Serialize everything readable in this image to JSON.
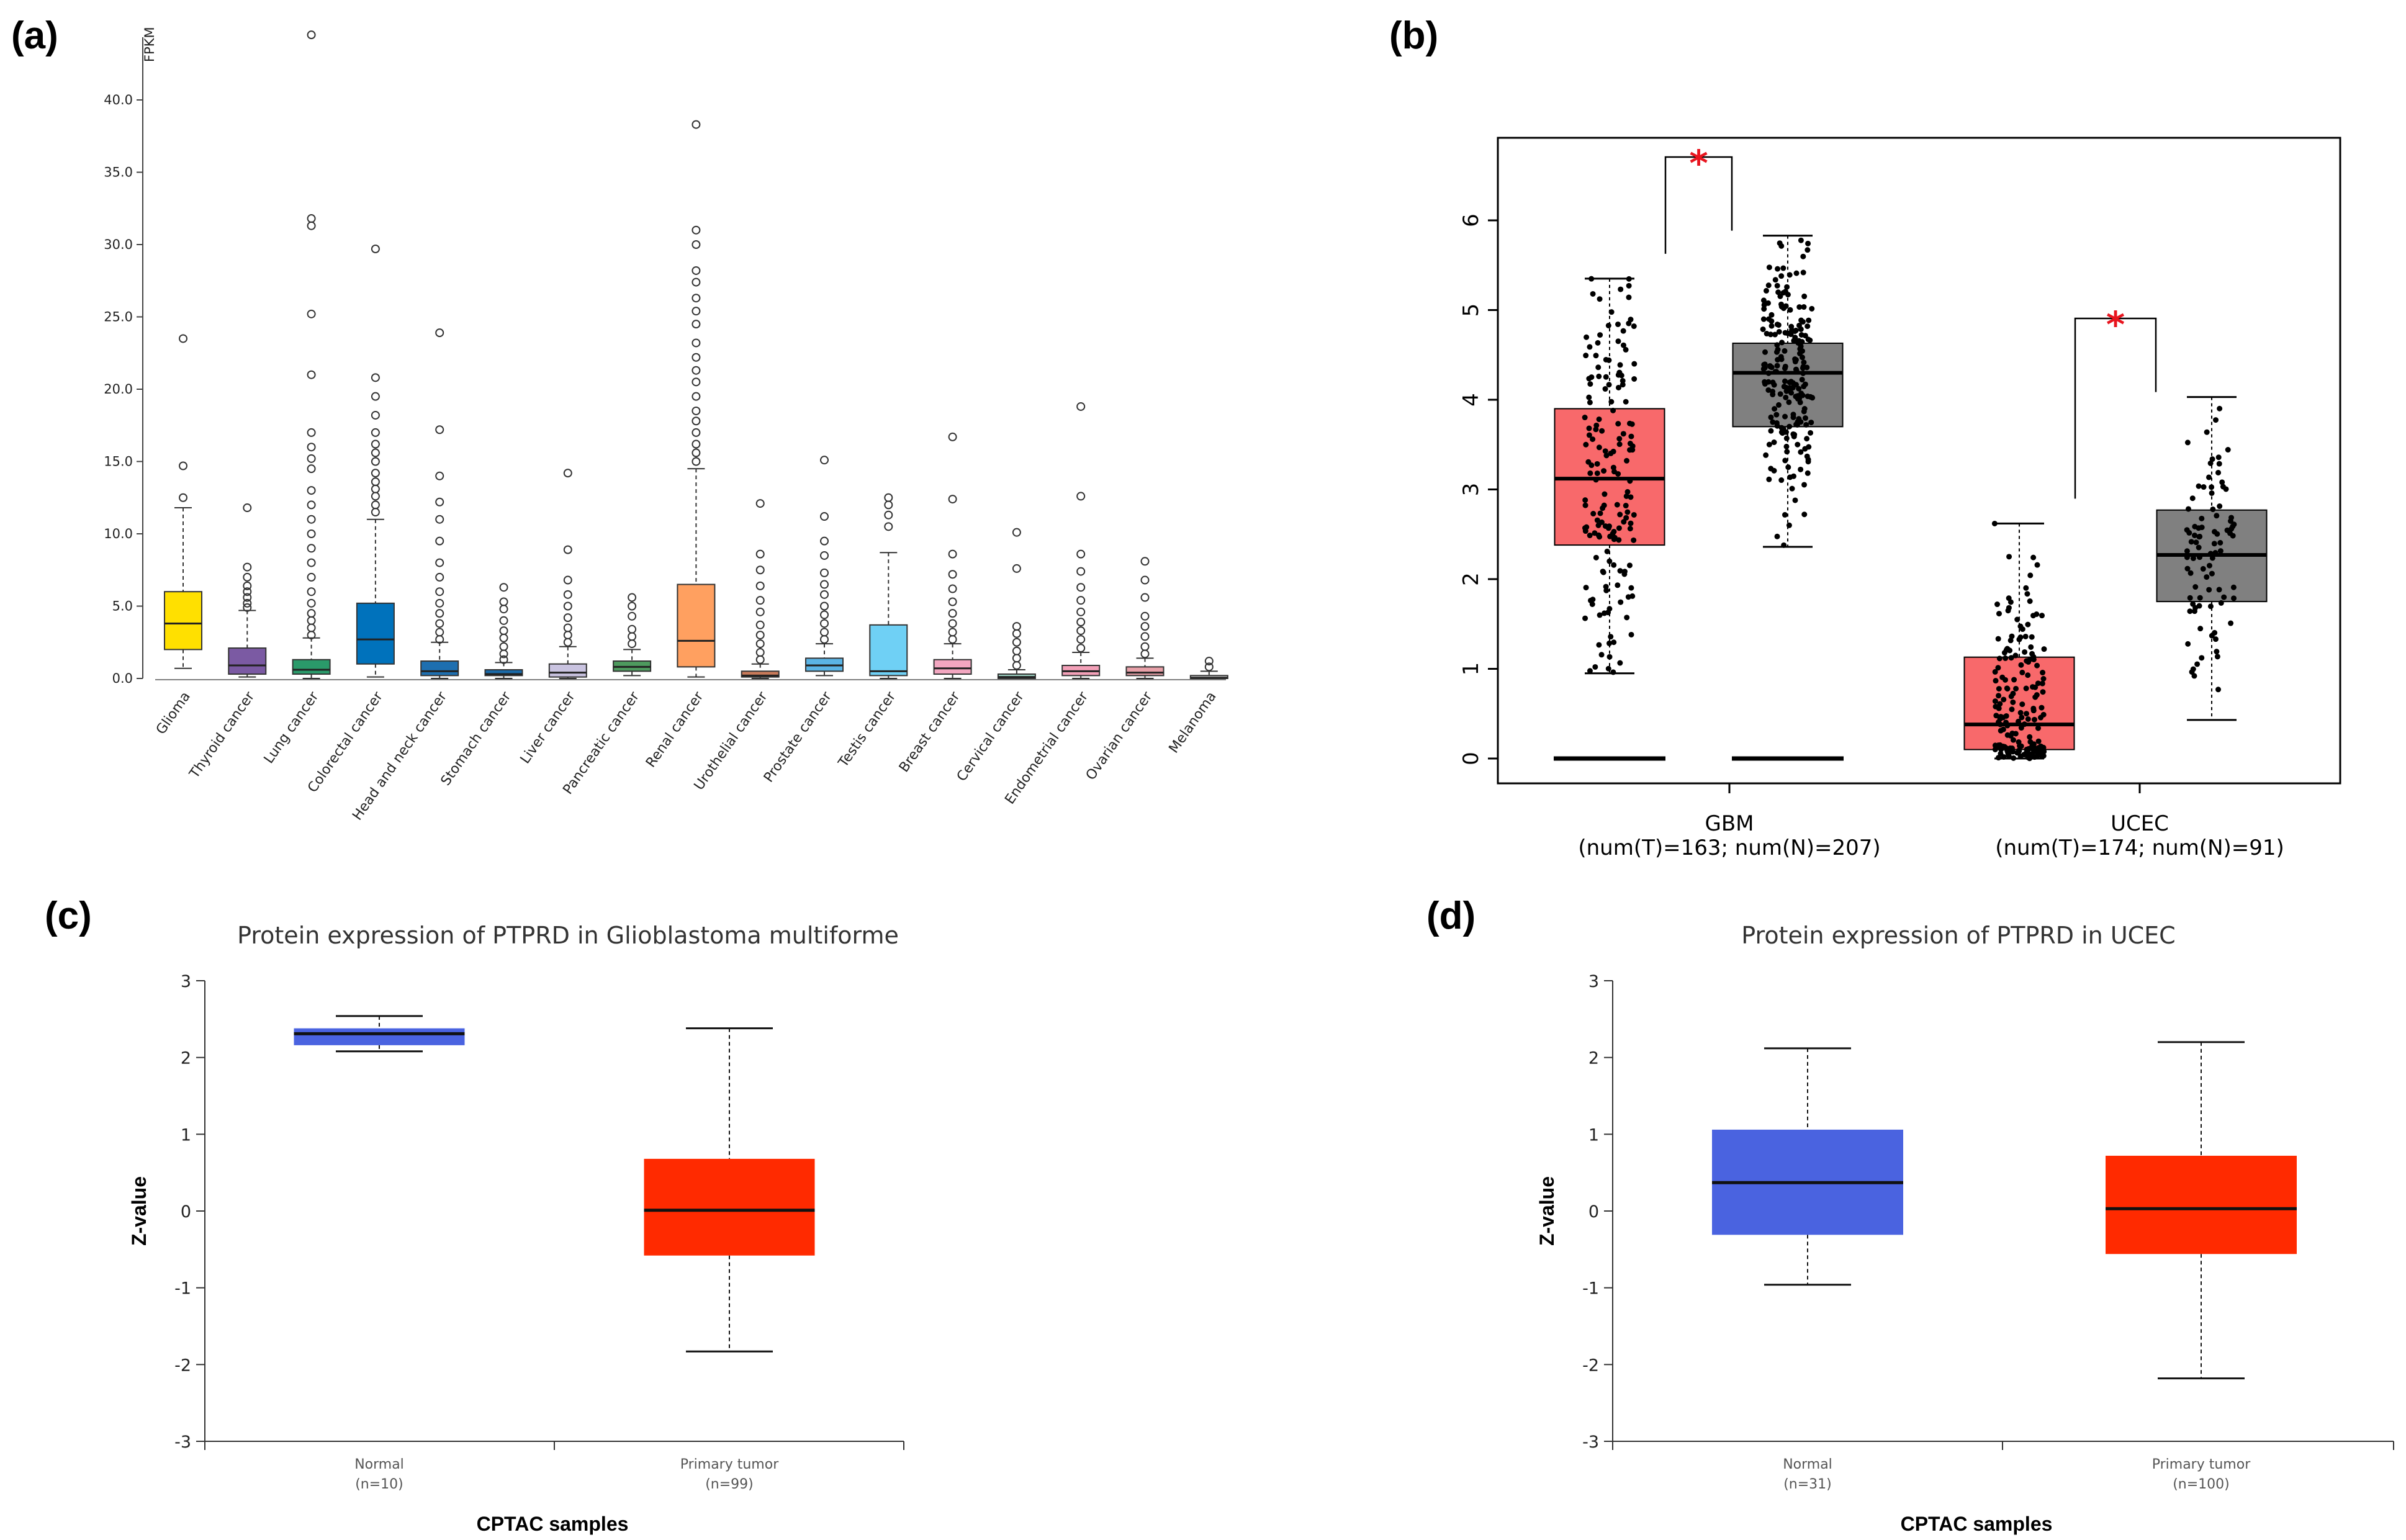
{
  "panels": {
    "a": "(a)",
    "b": "(b)",
    "c": "(c)",
    "d": "(d)"
  },
  "chart_data": [
    {
      "id": "a",
      "type": "box",
      "title": "",
      "ylabel": "FPKM",
      "ylim": [
        0,
        45
      ],
      "yticks": [
        "0.0",
        "5.0",
        "10.0",
        "15.0",
        "20.0",
        "25.0",
        "30.0",
        "35.0",
        "40.0"
      ],
      "categories": [
        "Glioma",
        "Thyroid cancer",
        "Lung cancer",
        "Colorectal cancer",
        "Head and neck cancer",
        "Stomach cancer",
        "Liver cancer",
        "Pancreatic cancer",
        "Renal cancer",
        "Urothelial cancer",
        "Prostate cancer",
        "Testis cancer",
        "Breast cancer",
        "Cervical cancer",
        "Endometrial cancer",
        "Ovarian cancer",
        "Melanoma"
      ],
      "colors": [
        "#ffe000",
        "#7b5aa3",
        "#2a9a6a",
        "#0072bc",
        "#1e6fb0",
        "#1a6aa8",
        "#c9c3e0",
        "#4e9a5e",
        "#ffa060",
        "#c97b5a",
        "#5bb4e5",
        "#6fd0f5",
        "#f2a6c0",
        "#9bd0c0",
        "#f3a0b8",
        "#e8a0a8",
        "#dddddd"
      ],
      "boxes": [
        {
          "low": 0.7,
          "q1": 2.0,
          "median": 3.8,
          "q3": 6.0,
          "high": 11.8,
          "outliers": [
            12.5,
            14.7,
            23.5
          ]
        },
        {
          "low": 0.1,
          "q1": 0.3,
          "median": 0.9,
          "q3": 2.1,
          "high": 4.7,
          "outliers": [
            4.9,
            5.2,
            5.6,
            6.0,
            6.4,
            7.0,
            7.7,
            11.8
          ]
        },
        {
          "low": 0.0,
          "q1": 0.3,
          "median": 0.6,
          "q3": 1.3,
          "high": 2.8,
          "outliers": [
            3.0,
            3.5,
            4.0,
            4.5,
            5.2,
            6.0,
            7.0,
            8.0,
            9.0,
            10.0,
            11.0,
            12.0,
            13.0,
            14.5,
            15.2,
            16.0,
            17.0,
            21.0,
            25.2,
            31.3,
            31.8,
            44.5
          ]
        },
        {
          "low": 0.1,
          "q1": 1.0,
          "median": 2.7,
          "q3": 5.2,
          "high": 11.0,
          "outliers": [
            11.5,
            12.0,
            12.6,
            13.1,
            13.6,
            14.2,
            15.0,
            15.6,
            16.2,
            17.0,
            18.2,
            19.5,
            20.8,
            29.7
          ]
        },
        {
          "low": 0.0,
          "q1": 0.2,
          "median": 0.5,
          "q3": 1.2,
          "high": 2.5,
          "outliers": [
            2.7,
            3.2,
            3.8,
            4.5,
            5.2,
            6.0,
            7.0,
            8.0,
            9.5,
            11.0,
            12.2,
            14.0,
            17.2,
            23.9
          ]
        },
        {
          "low": 0.0,
          "q1": 0.2,
          "median": 0.3,
          "q3": 0.6,
          "high": 1.1,
          "outliers": [
            1.3,
            1.7,
            2.2,
            2.8,
            3.3,
            4.0,
            4.8,
            5.3,
            6.3
          ]
        },
        {
          "low": 0.0,
          "q1": 0.1,
          "median": 0.4,
          "q3": 1.0,
          "high": 2.2,
          "outliers": [
            2.5,
            3.0,
            3.5,
            4.2,
            5.0,
            5.8,
            6.8,
            8.9,
            14.2
          ]
        },
        {
          "low": 0.2,
          "q1": 0.5,
          "median": 0.8,
          "q3": 1.2,
          "high": 2.0,
          "outliers": [
            2.4,
            2.9,
            3.4,
            4.3,
            5.0,
            5.6
          ]
        },
        {
          "low": 0.1,
          "q1": 0.8,
          "median": 2.6,
          "q3": 6.5,
          "high": 14.5,
          "outliers": [
            15.0,
            15.6,
            16.2,
            17.0,
            17.8,
            18.5,
            19.5,
            20.5,
            21.3,
            22.2,
            23.2,
            24.5,
            25.4,
            26.3,
            27.4,
            28.2,
            30.0,
            31.0,
            38.3
          ]
        },
        {
          "low": 0.0,
          "q1": 0.1,
          "median": 0.2,
          "q3": 0.5,
          "high": 1.0,
          "outliers": [
            1.3,
            1.8,
            2.4,
            3.0,
            3.7,
            4.6,
            5.4,
            6.4,
            7.5,
            8.6,
            12.1
          ]
        },
        {
          "low": 0.2,
          "q1": 0.5,
          "median": 0.9,
          "q3": 1.4,
          "high": 2.4,
          "outliers": [
            2.7,
            3.2,
            3.8,
            4.4,
            5.0,
            5.8,
            6.5,
            7.3,
            8.5,
            9.5,
            11.2,
            15.1
          ]
        },
        {
          "low": 0.0,
          "q1": 0.2,
          "median": 0.5,
          "q3": 3.7,
          "high": 8.7,
          "outliers": [
            10.5,
            11.3,
            12.0,
            12.5
          ]
        },
        {
          "low": 0.0,
          "q1": 0.3,
          "median": 0.7,
          "q3": 1.3,
          "high": 2.4,
          "outliers": [
            2.7,
            3.2,
            3.8,
            4.5,
            5.3,
            6.2,
            7.2,
            8.6,
            12.4,
            16.7
          ]
        },
        {
          "low": 0.0,
          "q1": 0.0,
          "median": 0.1,
          "q3": 0.3,
          "high": 0.6,
          "outliers": [
            0.9,
            1.4,
            1.9,
            2.5,
            3.1,
            3.6,
            7.6,
            10.1
          ]
        },
        {
          "low": 0.0,
          "q1": 0.2,
          "median": 0.5,
          "q3": 0.9,
          "high": 1.8,
          "outliers": [
            2.1,
            2.7,
            3.3,
            3.9,
            4.6,
            5.4,
            6.3,
            7.4,
            8.6,
            12.6,
            18.8
          ]
        },
        {
          "low": 0.0,
          "q1": 0.2,
          "median": 0.4,
          "q3": 0.8,
          "high": 1.4,
          "outliers": [
            1.7,
            2.2,
            2.9,
            3.6,
            4.3,
            5.6,
            6.8,
            8.1
          ]
        },
        {
          "low": 0.0,
          "q1": 0.0,
          "median": 0.05,
          "q3": 0.2,
          "high": 0.5,
          "outliers": [
            0.8,
            1.2
          ]
        }
      ]
    },
    {
      "id": "b",
      "type": "box",
      "ylim": [
        -0.25,
        7.0
      ],
      "yticks": [
        "0",
        "1",
        "2",
        "3",
        "4",
        "5",
        "6"
      ],
      "groups": [
        {
          "label": "GBM",
          "sub": "(num(T)=163; num(N)=207)",
          "tumor": {
            "low": 0.95,
            "q1": 2.38,
            "median": 3.12,
            "q3": 3.9,
            "high": 5.35,
            "n": 163,
            "color": "#f8696b"
          },
          "normal": {
            "low": 2.36,
            "q1": 3.7,
            "median": 4.3,
            "q3": 4.63,
            "high": 5.83,
            "n": 207,
            "color": "#808080"
          },
          "significance": "*"
        },
        {
          "label": "UCEC",
          "sub": "(num(T)=174; num(N)=91)",
          "tumor": {
            "low": 0.0,
            "q1": 0.1,
            "median": 0.38,
            "q3": 1.13,
            "high": 2.62,
            "n": 174,
            "color": "#f8696b"
          },
          "normal": {
            "low": 0.43,
            "q1": 1.75,
            "median": 2.27,
            "q3": 2.77,
            "high": 4.03,
            "n": 91,
            "color": "#808080"
          },
          "significance": "*"
        }
      ],
      "significance_color": "#e8141e"
    },
    {
      "id": "c",
      "type": "box",
      "title": "Protein expression of PTPRD in Glioblastoma multiforme",
      "xlabel": "CPTAC samples",
      "ylabel": "Z-value",
      "ylim": [
        -3,
        3
      ],
      "yticks": [
        "3",
        "2",
        "1",
        "0",
        "-1",
        "-2",
        "-3"
      ],
      "categories": [
        "Normal",
        "Primary tumor"
      ],
      "counts": [
        "(n=10)",
        "(n=99)"
      ],
      "boxes": [
        {
          "low": 2.08,
          "q1": 2.16,
          "median": 2.31,
          "q3": 2.38,
          "high": 2.54,
          "color": "#4a63e0"
        },
        {
          "low": -1.83,
          "q1": -0.58,
          "median": 0.01,
          "q3": 0.68,
          "high": 2.38,
          "color": "#ff2a00"
        }
      ]
    },
    {
      "id": "d",
      "type": "box",
      "title": "Protein expression of PTPRD in UCEC",
      "xlabel": "CPTAC samples",
      "ylabel": "Z-value",
      "ylim": [
        -3,
        3
      ],
      "yticks": [
        "3",
        "2",
        "1",
        "0",
        "-1",
        "-2",
        "-3"
      ],
      "categories": [
        "Normal",
        "Primary tumor"
      ],
      "counts": [
        "(n=31)",
        "(n=100)"
      ],
      "boxes": [
        {
          "low": -0.96,
          "q1": -0.31,
          "median": 0.37,
          "q3": 1.06,
          "high": 2.12,
          "color": "#4a63e0"
        },
        {
          "low": -2.18,
          "q1": -0.56,
          "median": 0.03,
          "q3": 0.72,
          "high": 2.2,
          "color": "#ff2a00"
        }
      ]
    }
  ]
}
